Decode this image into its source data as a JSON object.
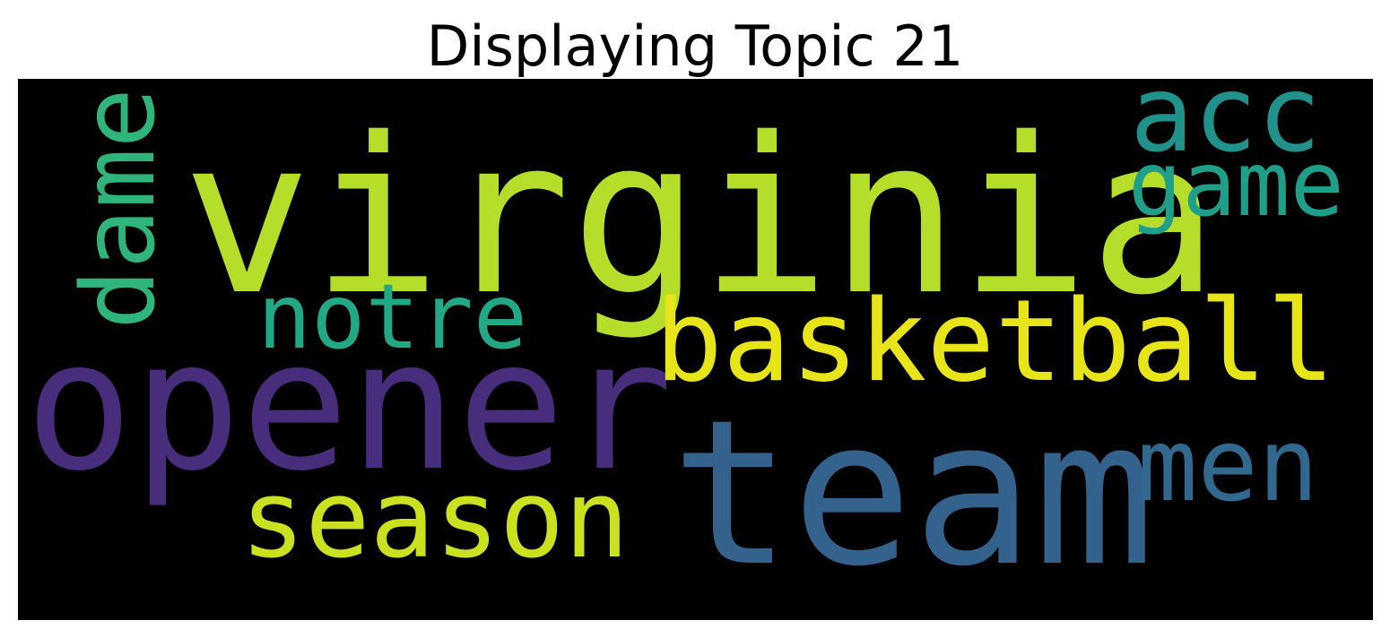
{
  "figure": {
    "title": "Displaying Topic 21",
    "background_color": "#000000"
  },
  "words": [
    {
      "key": "virginia",
      "text": "virginia",
      "color": "#b5de2b",
      "orientation": "horizontal"
    },
    {
      "key": "opener",
      "text": "opener",
      "color": "#472d7b",
      "orientation": "horizontal"
    },
    {
      "key": "team",
      "text": "team",
      "color": "#33638d",
      "orientation": "horizontal"
    },
    {
      "key": "basketball",
      "text": "basketball",
      "color": "#e7e419",
      "orientation": "horizontal"
    },
    {
      "key": "season",
      "text": "season",
      "color": "#cae11f",
      "orientation": "horizontal"
    },
    {
      "key": "acc",
      "text": "acc",
      "color": "#21918c",
      "orientation": "horizontal"
    },
    {
      "key": "game",
      "text": "game",
      "color": "#1f9e89",
      "orientation": "horizontal"
    },
    {
      "key": "dame",
      "text": "dame",
      "color": "#2fb47c",
      "orientation": "vertical"
    },
    {
      "key": "notre",
      "text": "notre",
      "color": "#22a884",
      "orientation": "horizontal"
    },
    {
      "key": "men",
      "text": "men",
      "color": "#31688e",
      "orientation": "horizontal"
    }
  ]
}
